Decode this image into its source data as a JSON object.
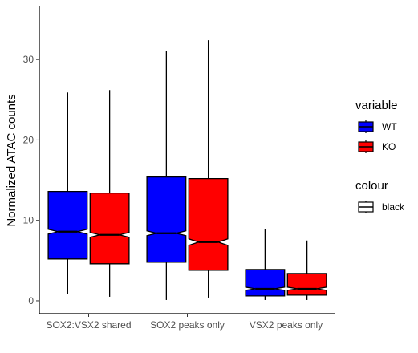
{
  "chart_data": {
    "type": "boxplot",
    "notched": true,
    "categories": [
      "SOX2:VSX2 shared",
      "SOX2 peaks only",
      "VSX2 peaks only"
    ],
    "ylabel": "Normalized ATAC counts",
    "xlabel": "",
    "ylim": [
      -1.6,
      36.6
    ],
    "yticks": [
      0,
      10,
      20,
      30
    ],
    "grid": false,
    "series": [
      {
        "name": "WT",
        "color": "#0000ff",
        "boxes": [
          {
            "min": 0.8,
            "q1": 5.2,
            "median": 8.6,
            "q3": 13.6,
            "max": 25.9,
            "notch_low": 8.3,
            "notch_high": 8.9
          },
          {
            "min": 0.1,
            "q1": 4.8,
            "median": 8.4,
            "q3": 15.4,
            "max": 31.1,
            "notch_low": 8.1,
            "notch_high": 8.7
          },
          {
            "min": 0.1,
            "q1": 0.6,
            "median": 1.5,
            "q3": 3.9,
            "max": 8.9,
            "notch_low": 1.3,
            "notch_high": 1.7
          }
        ]
      },
      {
        "name": "KO",
        "color": "#ff0000",
        "boxes": [
          {
            "min": 0.5,
            "q1": 4.6,
            "median": 8.2,
            "q3": 13.4,
            "max": 26.2,
            "notch_low": 7.9,
            "notch_high": 8.5
          },
          {
            "min": 0.4,
            "q1": 3.8,
            "median": 7.3,
            "q3": 15.2,
            "max": 32.4,
            "notch_low": 6.9,
            "notch_high": 7.7
          },
          {
            "min": 0.1,
            "q1": 0.7,
            "median": 1.5,
            "q3": 3.4,
            "max": 7.5,
            "notch_low": 1.3,
            "notch_high": 1.7
          }
        ]
      }
    ],
    "legend": {
      "position": "right",
      "groups": [
        {
          "title": "variable",
          "entries": [
            {
              "label": "WT",
              "color": "#0000ff"
            },
            {
              "label": "KO",
              "color": "#ff0000"
            }
          ]
        },
        {
          "title": "colour",
          "entries": [
            {
              "label": "black",
              "color": "#ffffff"
            }
          ]
        }
      ]
    }
  }
}
